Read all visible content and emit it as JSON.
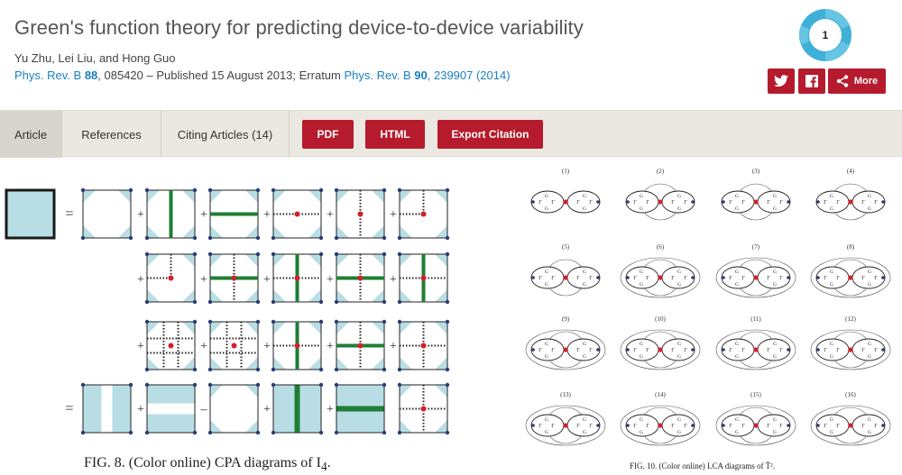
{
  "article": {
    "title": "Green's function theory for predicting device-to-device variability",
    "authors": "Yu Zhu, Lei Liu, and Hong Guo",
    "journal": "Phys. Rev. B",
    "volume": "88",
    "article_number": ", 085420 – Published 15 August 2013; Erratum ",
    "erratum_journal": "Phys. Rev. B",
    "erratum_volume": "90",
    "erratum_ref": ", 239907 (2014)"
  },
  "altmetric": {
    "score": "1",
    "color": "#3fb0d8"
  },
  "share": {
    "twitter_icon": "twitter-icon",
    "facebook_icon": "facebook-icon",
    "more_label": "More"
  },
  "nav": {
    "tabs": [
      {
        "label": "Article",
        "active": true
      },
      {
        "label": "References",
        "active": false
      },
      {
        "label": "Citing Articles (14)",
        "active": false
      }
    ],
    "buttons": {
      "pdf": "PDF",
      "html": "HTML",
      "export": "Export Citation"
    }
  },
  "figure8": {
    "caption_prefix": "FIG. 8.",
    "caption_text": "(Color online) CPA diagrams of I",
    "caption_sub": "4",
    "caption_end": ".",
    "row_symbols": [
      "=",
      "+",
      "+",
      "="
    ],
    "minus_symbol": "–"
  },
  "figure10": {
    "caption": "FIG. 10. (Color online) LCA diagrams of T̄².",
    "labels": [
      "(1)",
      "(2)",
      "(3)",
      "(4)",
      "(5)",
      "(6)",
      "(7)",
      "(8)",
      "(9)",
      "(10)",
      "(11)",
      "(12)",
      "(13)",
      "(14)",
      "(15)",
      "(16)"
    ],
    "gamma_label": "Γ",
    "g_label": "G"
  },
  "colors": {
    "brand_red": "#b51b2c",
    "link_blue": "#1a7fc4",
    "diagram_fill": "#b9dde4",
    "diagram_green": "#1e7e34",
    "node_red": "#d0202e"
  }
}
